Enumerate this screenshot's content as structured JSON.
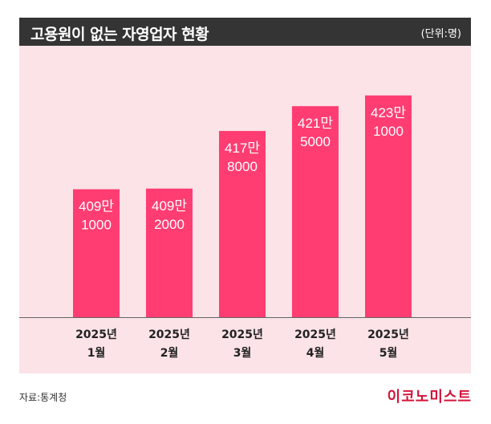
{
  "header": {
    "title": "고용원이 없는 자영업자 현황",
    "unit": "(단위:명)"
  },
  "chart_data": {
    "type": "bar",
    "title": "고용원이 없는 자영업자 현황",
    "unit_label": "(단위:명)",
    "categories": [
      {
        "line1": "2025년",
        "line2": "1월"
      },
      {
        "line1": "2025년",
        "line2": "2월"
      },
      {
        "line1": "2025년",
        "line2": "3월"
      },
      {
        "line1": "2025년",
        "line2": "4월"
      },
      {
        "line1": "2025년",
        "line2": "5월"
      }
    ],
    "values": [
      4091000,
      4092000,
      4178000,
      4215000,
      4231000
    ],
    "value_labels": [
      {
        "line1": "409만",
        "line2": "1000"
      },
      {
        "line1": "409만",
        "line2": "2000"
      },
      {
        "line1": "417만",
        "line2": "8000"
      },
      {
        "line1": "421만",
        "line2": "5000"
      },
      {
        "line1": "423만",
        "line2": "1000"
      }
    ],
    "bar_color": "#ff3d72",
    "background_color": "#fbe3e7",
    "ylim": [
      3900000,
      4250000
    ],
    "grid": false,
    "legend": "none"
  },
  "footer": {
    "source": "자료:통계청",
    "brand": "이코노미스트"
  }
}
